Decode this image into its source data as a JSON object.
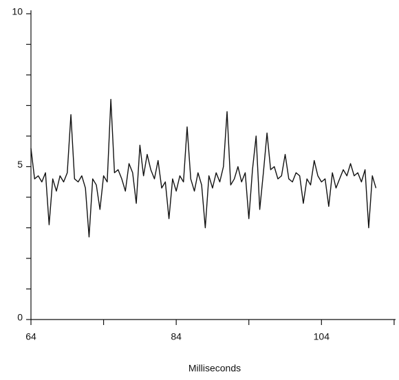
{
  "chart_data": {
    "type": "line",
    "x_label": "Milliseconds",
    "x": [
      64,
      64.5,
      65,
      65.5,
      66,
      66.5,
      67,
      67.5,
      68,
      68.5,
      69,
      69.5,
      70,
      70.5,
      71,
      71.5,
      72,
      72.5,
      73,
      73.5,
      74,
      74.5,
      75,
      75.5,
      76,
      76.5,
      77,
      77.5,
      78,
      78.5,
      79,
      79.5,
      80,
      80.5,
      81,
      81.5,
      82,
      82.5,
      83,
      83.5,
      84,
      84.5,
      85,
      85.5,
      86,
      86.5,
      87,
      87.5,
      88,
      88.5,
      89,
      89.5,
      90,
      90.5,
      91,
      91.5,
      92,
      92.5,
      93,
      93.5,
      94,
      94.5,
      95,
      95.5,
      96,
      96.5,
      97,
      97.5,
      98,
      98.5,
      99,
      99.5,
      100,
      100.5,
      101,
      101.5,
      102,
      102.5,
      103,
      103.5,
      104,
      104.5,
      105,
      105.5,
      106,
      106.5,
      107,
      107.5,
      108,
      108.5,
      109,
      109.5,
      110,
      110.5,
      111,
      111.5
    ],
    "series": [
      {
        "color": "#111111",
        "values": [
          5.6,
          4.6,
          4.7,
          4.5,
          4.8,
          3.1,
          4.6,
          4.2,
          4.7,
          4.5,
          4.8,
          6.7,
          4.6,
          4.5,
          4.7,
          4.3,
          2.7,
          4.6,
          4.4,
          3.6,
          4.7,
          4.5,
          7.2,
          4.8,
          4.9,
          4.6,
          4.2,
          5.1,
          4.8,
          3.8,
          5.7,
          4.7,
          5.4,
          4.9,
          4.6,
          5.2,
          4.3,
          4.5,
          3.3,
          4.6,
          4.2,
          4.7,
          4.5,
          6.3,
          4.6,
          4.2,
          4.8,
          4.4,
          3.0,
          4.7,
          4.3,
          4.8,
          4.5,
          5.0,
          6.8,
          4.4,
          4.6,
          5.0,
          4.5,
          4.8,
          3.3,
          4.9,
          6.0,
          3.6,
          4.8,
          6.1,
          4.9,
          5.0,
          4.6,
          4.7,
          5.4,
          4.6,
          4.5,
          4.8,
          4.7,
          3.8,
          4.6,
          4.4,
          5.2,
          4.7,
          4.5,
          4.6,
          3.7,
          4.8,
          4.3,
          4.6,
          4.9,
          4.7,
          5.1,
          4.7,
          4.8,
          4.5,
          4.9,
          3.0,
          4.7,
          4.3
        ]
      }
    ],
    "xlim": [
      64,
      114.2
    ],
    "xticks": [
      64,
      84,
      104
    ],
    "xminor_ticks": [
      74,
      94,
      114
    ],
    "ylim": [
      0,
      10
    ],
    "yticks": [
      0,
      5,
      10
    ],
    "yminor_ticks": [
      1,
      2,
      3,
      4,
      6,
      7,
      8,
      9
    ]
  }
}
